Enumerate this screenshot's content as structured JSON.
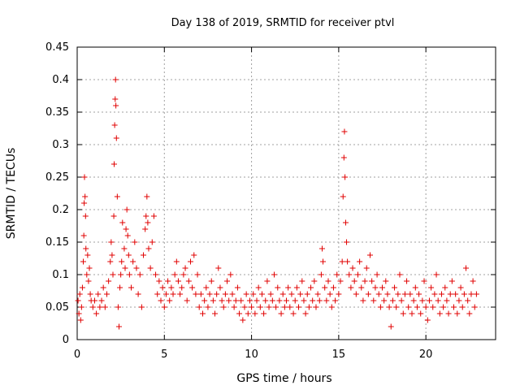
{
  "chart_data": {
    "type": "scatter",
    "title": "Day 138 of 2019, SRMTID for receiver ptvl",
    "xlabel": "GPS time / hours",
    "ylabel": "SRMTID / TECUs",
    "xlim": [
      0,
      24
    ],
    "ylim": [
      0,
      0.45
    ],
    "xticks": [
      "0",
      "5",
      "10",
      "15",
      "20"
    ],
    "xtick_values": [
      0,
      5,
      10,
      15,
      20
    ],
    "yticks": [
      "0",
      "0.05",
      "0.1",
      "0.15",
      "0.2",
      "0.25",
      "0.3",
      "0.35",
      "0.4",
      "0.45"
    ],
    "ytick_values": [
      0,
      0.05,
      0.1,
      0.15,
      0.2,
      0.25,
      0.3,
      0.35,
      0.4,
      0.45
    ],
    "grid": true,
    "marker": "+",
    "color": "#e00000",
    "series": [
      {
        "points": [
          [
            0.05,
            0.06
          ],
          [
            0.1,
            0.04
          ],
          [
            0.15,
            0.07
          ],
          [
            0.2,
            0.03
          ],
          [
            0.25,
            0.05
          ],
          [
            0.3,
            0.08
          ],
          [
            0.35,
            0.12
          ],
          [
            0.38,
            0.16
          ],
          [
            0.4,
            0.21
          ],
          [
            0.42,
            0.25
          ],
          [
            0.45,
            0.22
          ],
          [
            0.48,
            0.19
          ],
          [
            0.5,
            0.14
          ],
          [
            0.55,
            0.1
          ],
          [
            0.6,
            0.13
          ],
          [
            0.65,
            0.09
          ],
          [
            0.7,
            0.11
          ],
          [
            0.75,
            0.07
          ],
          [
            0.8,
            0.06
          ],
          [
            0.9,
            0.05
          ],
          [
            1.0,
            0.06
          ],
          [
            1.1,
            0.04
          ],
          [
            1.2,
            0.07
          ],
          [
            1.3,
            0.05
          ],
          [
            1.4,
            0.06
          ],
          [
            1.5,
            0.08
          ],
          [
            1.6,
            0.05
          ],
          [
            1.7,
            0.07
          ],
          [
            1.8,
            0.09
          ],
          [
            1.9,
            0.12
          ],
          [
            1.95,
            0.15
          ],
          [
            2.0,
            0.13
          ],
          [
            2.05,
            0.1
          ],
          [
            2.1,
            0.19
          ],
          [
            2.12,
            0.27
          ],
          [
            2.15,
            0.33
          ],
          [
            2.18,
            0.37
          ],
          [
            2.2,
            0.4
          ],
          [
            2.22,
            0.36
          ],
          [
            2.25,
            0.31
          ],
          [
            2.3,
            0.22
          ],
          [
            2.35,
            0.05
          ],
          [
            2.4,
            0.02
          ],
          [
            2.45,
            0.08
          ],
          [
            2.5,
            0.1
          ],
          [
            2.55,
            0.12
          ],
          [
            2.6,
            0.18
          ],
          [
            2.7,
            0.14
          ],
          [
            2.75,
            0.11
          ],
          [
            2.8,
            0.17
          ],
          [
            2.85,
            0.2
          ],
          [
            2.9,
            0.16
          ],
          [
            2.95,
            0.13
          ],
          [
            3.0,
            0.1
          ],
          [
            3.1,
            0.08
          ],
          [
            3.2,
            0.12
          ],
          [
            3.3,
            0.15
          ],
          [
            3.4,
            0.11
          ],
          [
            3.5,
            0.07
          ],
          [
            3.6,
            0.1
          ],
          [
            3.7,
            0.05
          ],
          [
            3.8,
            0.13
          ],
          [
            3.9,
            0.17
          ],
          [
            3.95,
            0.19
          ],
          [
            4.0,
            0.22
          ],
          [
            4.05,
            0.18
          ],
          [
            4.1,
            0.14
          ],
          [
            4.2,
            0.11
          ],
          [
            4.3,
            0.15
          ],
          [
            4.4,
            0.19
          ],
          [
            4.5,
            0.1
          ],
          [
            4.6,
            0.07
          ],
          [
            4.7,
            0.09
          ],
          [
            4.8,
            0.06
          ],
          [
            4.9,
            0.08
          ],
          [
            5.0,
            0.05
          ],
          [
            5.1,
            0.07
          ],
          [
            5.2,
            0.09
          ],
          [
            5.3,
            0.06
          ],
          [
            5.4,
            0.08
          ],
          [
            5.5,
            0.07
          ],
          [
            5.6,
            0.1
          ],
          [
            5.7,
            0.12
          ],
          [
            5.8,
            0.09
          ],
          [
            5.9,
            0.07
          ],
          [
            6.0,
            0.08
          ],
          [
            6.1,
            0.1
          ],
          [
            6.2,
            0.11
          ],
          [
            6.3,
            0.06
          ],
          [
            6.4,
            0.09
          ],
          [
            6.5,
            0.12
          ],
          [
            6.6,
            0.08
          ],
          [
            6.7,
            0.13
          ],
          [
            6.8,
            0.07
          ],
          [
            6.9,
            0.1
          ],
          [
            7.0,
            0.05
          ],
          [
            7.1,
            0.07
          ],
          [
            7.2,
            0.04
          ],
          [
            7.3,
            0.06
          ],
          [
            7.4,
            0.08
          ],
          [
            7.5,
            0.05
          ],
          [
            7.6,
            0.07
          ],
          [
            7.7,
            0.09
          ],
          [
            7.8,
            0.06
          ],
          [
            7.9,
            0.04
          ],
          [
            8.0,
            0.07
          ],
          [
            8.1,
            0.11
          ],
          [
            8.2,
            0.08
          ],
          [
            8.3,
            0.06
          ],
          [
            8.4,
            0.05
          ],
          [
            8.5,
            0.07
          ],
          [
            8.6,
            0.09
          ],
          [
            8.7,
            0.06
          ],
          [
            8.8,
            0.1
          ],
          [
            8.9,
            0.07
          ],
          [
            9.0,
            0.05
          ],
          [
            9.1,
            0.06
          ],
          [
            9.2,
            0.08
          ],
          [
            9.3,
            0.04
          ],
          [
            9.4,
            0.06
          ],
          [
            9.5,
            0.03
          ],
          [
            9.6,
            0.05
          ],
          [
            9.7,
            0.07
          ],
          [
            9.8,
            0.04
          ],
          [
            9.9,
            0.06
          ],
          [
            10.0,
            0.05
          ],
          [
            10.1,
            0.07
          ],
          [
            10.2,
            0.04
          ],
          [
            10.3,
            0.06
          ],
          [
            10.4,
            0.08
          ],
          [
            10.5,
            0.05
          ],
          [
            10.6,
            0.07
          ],
          [
            10.7,
            0.04
          ],
          [
            10.8,
            0.06
          ],
          [
            10.9,
            0.09
          ],
          [
            11.0,
            0.05
          ],
          [
            11.1,
            0.07
          ],
          [
            11.2,
            0.06
          ],
          [
            11.3,
            0.1
          ],
          [
            11.4,
            0.05
          ],
          [
            11.5,
            0.08
          ],
          [
            11.6,
            0.06
          ],
          [
            11.7,
            0.04
          ],
          [
            11.8,
            0.07
          ],
          [
            11.9,
            0.05
          ],
          [
            12.0,
            0.06
          ],
          [
            12.1,
            0.08
          ],
          [
            12.2,
            0.05
          ],
          [
            12.3,
            0.07
          ],
          [
            12.4,
            0.04
          ],
          [
            12.5,
            0.06
          ],
          [
            12.6,
            0.08
          ],
          [
            12.7,
            0.05
          ],
          [
            12.8,
            0.07
          ],
          [
            12.9,
            0.09
          ],
          [
            13.0,
            0.06
          ],
          [
            13.1,
            0.04
          ],
          [
            13.2,
            0.07
          ],
          [
            13.3,
            0.05
          ],
          [
            13.4,
            0.08
          ],
          [
            13.5,
            0.06
          ],
          [
            13.6,
            0.09
          ],
          [
            13.7,
            0.05
          ],
          [
            13.8,
            0.07
          ],
          [
            13.9,
            0.06
          ],
          [
            14.0,
            0.1
          ],
          [
            14.05,
            0.14
          ],
          [
            14.1,
            0.12
          ],
          [
            14.2,
            0.08
          ],
          [
            14.3,
            0.06
          ],
          [
            14.4,
            0.09
          ],
          [
            14.5,
            0.07
          ],
          [
            14.6,
            0.05
          ],
          [
            14.7,
            0.08
          ],
          [
            14.8,
            0.06
          ],
          [
            14.9,
            0.1
          ],
          [
            15.0,
            0.07
          ],
          [
            15.1,
            0.09
          ],
          [
            15.2,
            0.12
          ],
          [
            15.25,
            0.22
          ],
          [
            15.3,
            0.28
          ],
          [
            15.33,
            0.32
          ],
          [
            15.36,
            0.25
          ],
          [
            15.4,
            0.18
          ],
          [
            15.45,
            0.15
          ],
          [
            15.5,
            0.12
          ],
          [
            15.6,
            0.1
          ],
          [
            15.7,
            0.08
          ],
          [
            15.8,
            0.11
          ],
          [
            15.9,
            0.09
          ],
          [
            16.0,
            0.07
          ],
          [
            16.1,
            0.1
          ],
          [
            16.2,
            0.12
          ],
          [
            16.3,
            0.08
          ],
          [
            16.4,
            0.06
          ],
          [
            16.5,
            0.09
          ],
          [
            16.6,
            0.11
          ],
          [
            16.7,
            0.07
          ],
          [
            16.8,
            0.13
          ],
          [
            16.9,
            0.09
          ],
          [
            17.0,
            0.06
          ],
          [
            17.1,
            0.08
          ],
          [
            17.2,
            0.1
          ],
          [
            17.3,
            0.07
          ],
          [
            17.4,
            0.05
          ],
          [
            17.5,
            0.08
          ],
          [
            17.6,
            0.06
          ],
          [
            17.7,
            0.09
          ],
          [
            17.8,
            0.07
          ],
          [
            17.9,
            0.05
          ],
          [
            18.0,
            0.02
          ],
          [
            18.1,
            0.06
          ],
          [
            18.2,
            0.08
          ],
          [
            18.3,
            0.05
          ],
          [
            18.4,
            0.07
          ],
          [
            18.5,
            0.1
          ],
          [
            18.6,
            0.06
          ],
          [
            18.7,
            0.04
          ],
          [
            18.8,
            0.07
          ],
          [
            18.9,
            0.09
          ],
          [
            19.0,
            0.05
          ],
          [
            19.1,
            0.07
          ],
          [
            19.2,
            0.04
          ],
          [
            19.3,
            0.06
          ],
          [
            19.4,
            0.08
          ],
          [
            19.5,
            0.05
          ],
          [
            19.6,
            0.07
          ],
          [
            19.7,
            0.04
          ],
          [
            19.8,
            0.06
          ],
          [
            19.9,
            0.09
          ],
          [
            20.0,
            0.05
          ],
          [
            20.1,
            0.03
          ],
          [
            20.2,
            0.06
          ],
          [
            20.3,
            0.08
          ],
          [
            20.4,
            0.05
          ],
          [
            20.5,
            0.07
          ],
          [
            20.6,
            0.1
          ],
          [
            20.7,
            0.06
          ],
          [
            20.8,
            0.04
          ],
          [
            20.9,
            0.07
          ],
          [
            21.0,
            0.05
          ],
          [
            21.1,
            0.08
          ],
          [
            21.2,
            0.06
          ],
          [
            21.3,
            0.04
          ],
          [
            21.4,
            0.07
          ],
          [
            21.5,
            0.09
          ],
          [
            21.6,
            0.05
          ],
          [
            21.7,
            0.07
          ],
          [
            21.8,
            0.04
          ],
          [
            21.9,
            0.06
          ],
          [
            22.0,
            0.08
          ],
          [
            22.1,
            0.05
          ],
          [
            22.2,
            0.07
          ],
          [
            22.3,
            0.11
          ],
          [
            22.4,
            0.06
          ],
          [
            22.5,
            0.04
          ],
          [
            22.6,
            0.07
          ],
          [
            22.7,
            0.09
          ],
          [
            22.8,
            0.05
          ],
          [
            22.9,
            0.07
          ]
        ]
      }
    ]
  }
}
